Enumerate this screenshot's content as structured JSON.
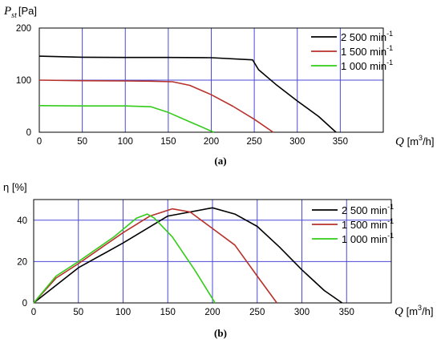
{
  "colors": {
    "grid": "#4a4ad8",
    "black": "#000000",
    "red": "#b8302a",
    "green": "#33cc1a"
  },
  "chart_data": [
    {
      "type": "line",
      "caption": "(a)",
      "ylabel_symbol": "P",
      "ylabel_sub": "st",
      "ylabel_unit": "[Pa]",
      "xlabel_symbol": "Q",
      "xlabel_unit": "[m",
      "xlabel_sup": "3",
      "xlabel_end": "/h]",
      "xlim": [
        0,
        400
      ],
      "ylim": [
        0,
        200
      ],
      "xticks": [
        0,
        50,
        100,
        150,
        200,
        250,
        300,
        350
      ],
      "yticks": [
        0,
        100,
        200
      ],
      "grid": true,
      "legend_position": "top-right",
      "series": [
        {
          "name": "2 500 min",
          "sup": "-1",
          "color": "#000000",
          "x": [
            0,
            50,
            100,
            150,
            200,
            248,
            255,
            275,
            300,
            325,
            345
          ],
          "y": [
            146,
            144,
            143.5,
            143.5,
            143,
            139,
            120,
            92,
            60,
            30,
            0
          ]
        },
        {
          "name": "1 500 min",
          "sup": "-1",
          "color": "#b8302a",
          "x": [
            0,
            50,
            100,
            130,
            155,
            175,
            200,
            225,
            250,
            272
          ],
          "y": [
            100,
            99,
            98.5,
            98,
            97,
            90,
            72,
            50,
            25,
            0
          ]
        },
        {
          "name": "1 000 min",
          "sup": "-1",
          "color": "#33cc1a",
          "x": [
            0,
            50,
            100,
            130,
            150,
            175,
            203
          ],
          "y": [
            51,
            50.5,
            50.5,
            49,
            38,
            20,
            0
          ]
        }
      ]
    },
    {
      "type": "line",
      "caption": "(b)",
      "ylabel_symbol": "η",
      "ylabel_sub": "",
      "ylabel_unit": "[%]",
      "xlabel_symbol": "Q",
      "xlabel_unit": "[m",
      "xlabel_sup": "3",
      "xlabel_end": "/h]",
      "xlim": [
        0,
        400
      ],
      "ylim": [
        0,
        50
      ],
      "xticks": [
        0,
        50,
        100,
        150,
        200,
        250,
        300,
        350
      ],
      "yticks": [
        0,
        20,
        40
      ],
      "grid": true,
      "legend_position": "top-right",
      "series": [
        {
          "name": "2 500 min",
          "sup": "-1",
          "color": "#000000",
          "x": [
            0,
            50,
            100,
            150,
            200,
            225,
            250,
            275,
            300,
            325,
            345
          ],
          "y": [
            0,
            17,
            29,
            42,
            46,
            43,
            37,
            27,
            16,
            6,
            0
          ]
        },
        {
          "name": "1 500 min",
          "sup": "-1",
          "color": "#b8302a",
          "x": [
            0,
            25,
            50,
            100,
            130,
            155,
            175,
            200,
            225,
            250,
            272
          ],
          "y": [
            0,
            12,
            19,
            34,
            42,
            45.5,
            44,
            36,
            28,
            13,
            0
          ]
        },
        {
          "name": "1 000 min",
          "sup": "-1",
          "color": "#33cc1a",
          "x": [
            0,
            25,
            50,
            90,
            115,
            127,
            135,
            155,
            180,
            203
          ],
          "y": [
            0,
            13,
            20,
            32,
            41,
            43,
            41,
            32,
            16,
            0
          ]
        }
      ]
    }
  ]
}
